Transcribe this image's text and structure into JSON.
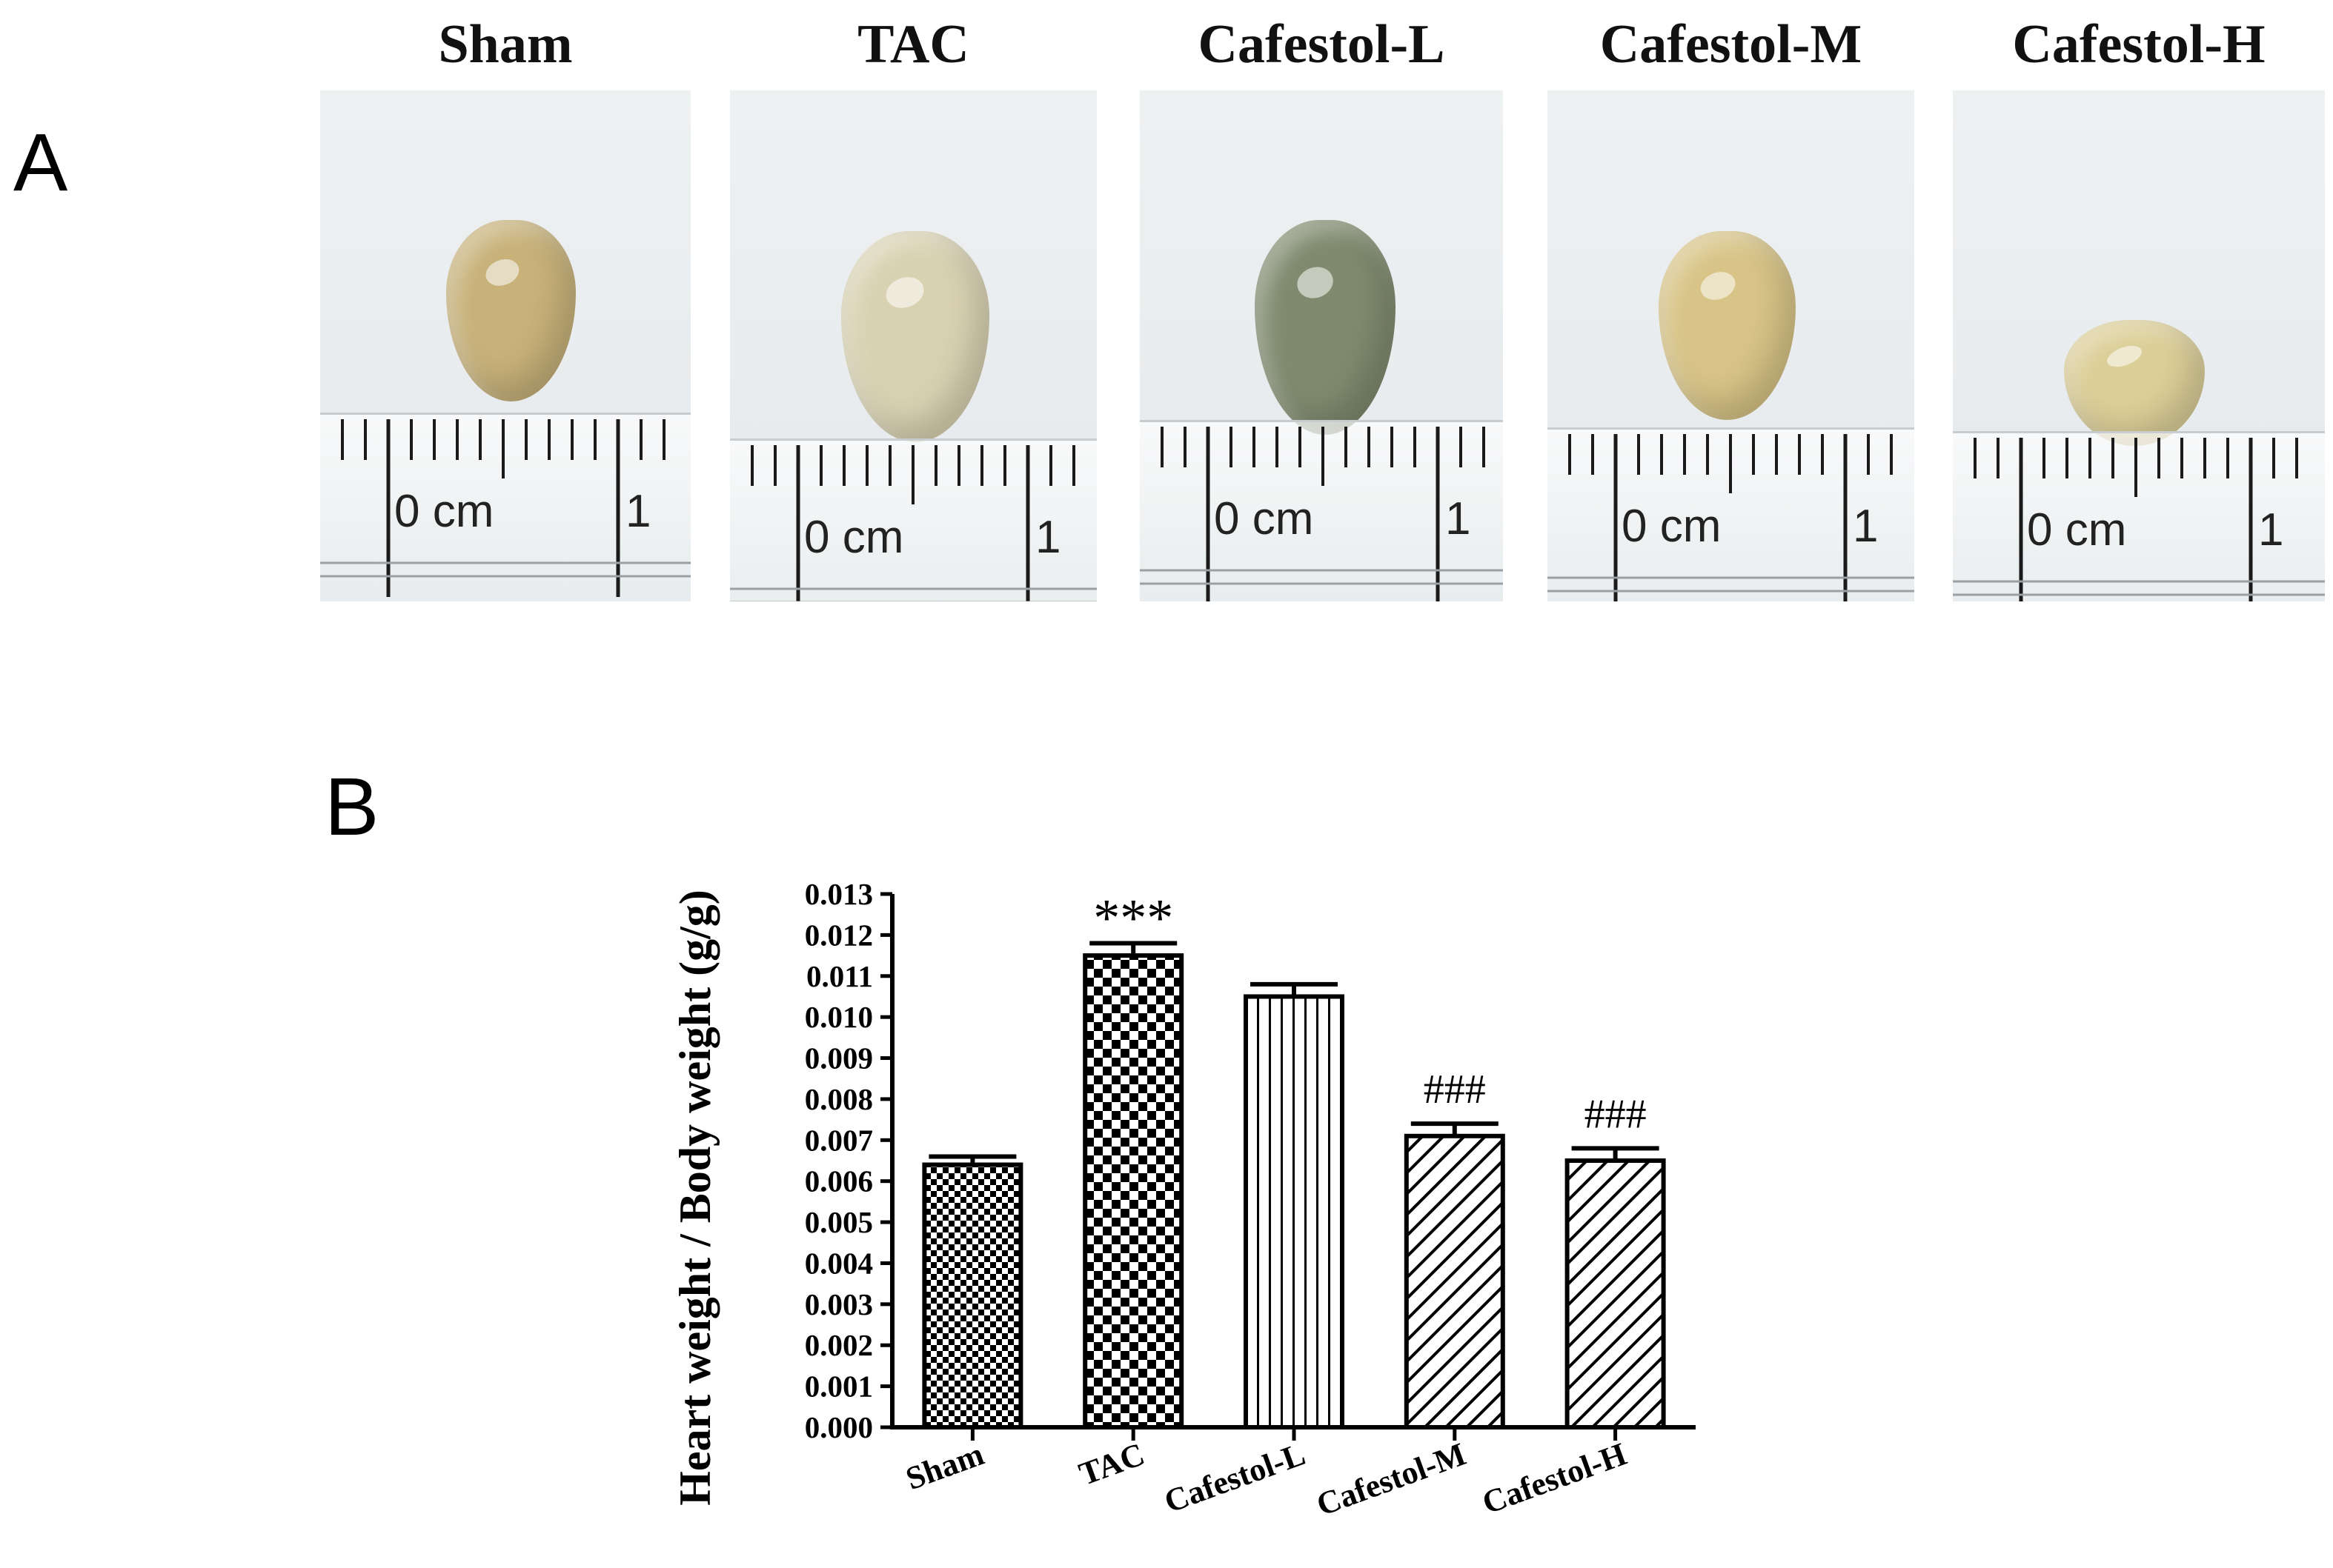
{
  "panel_a": {
    "letter": "A",
    "hearts": [
      {
        "label": "Sham",
        "ruler_zero": "0 cm",
        "ruler_one": "1",
        "tissue_color": "#c8b27a"
      },
      {
        "label": "TAC",
        "ruler_zero": "0 cm",
        "ruler_one": "1",
        "tissue_color": "#d9d2b2"
      },
      {
        "label": "Cafestol-L",
        "ruler_zero": "0 cm",
        "ruler_one": "1",
        "tissue_color": "#7f8a6e"
      },
      {
        "label": "Cafestol-M",
        "ruler_zero": "0 cm",
        "ruler_one": "1",
        "tissue_color": "#d8c486"
      },
      {
        "label": "Cafestol-H",
        "ruler_zero": "0 cm",
        "ruler_one": "1",
        "tissue_color": "#dccf98"
      }
    ]
  },
  "panel_b": {
    "letter": "B"
  },
  "chart_data": {
    "type": "bar",
    "title": "",
    "xlabel": "",
    "ylabel": "Heart weight / Body weight (g/g)",
    "categories": [
      "Sham",
      "TAC",
      "Cafestol-L",
      "Cafestol-M",
      "Cafestol-H"
    ],
    "values": [
      0.0064,
      0.0115,
      0.0105,
      0.0071,
      0.0065
    ],
    "errors": [
      0.0002,
      0.0003,
      0.0003,
      0.0003,
      0.0003
    ],
    "patterns": [
      "checker-small",
      "checker-large",
      "vertical-lines",
      "diagonal-lines",
      "diagonal-lines"
    ],
    "annotations": [
      "",
      "***",
      "",
      "###",
      "###"
    ],
    "ylim": [
      0,
      0.013
    ],
    "yticks": [
      "0.000",
      "0.001",
      "0.002",
      "0.003",
      "0.004",
      "0.005",
      "0.006",
      "0.007",
      "0.008",
      "0.009",
      "0.010",
      "0.011",
      "0.012",
      "0.013"
    ],
    "grid": false
  }
}
